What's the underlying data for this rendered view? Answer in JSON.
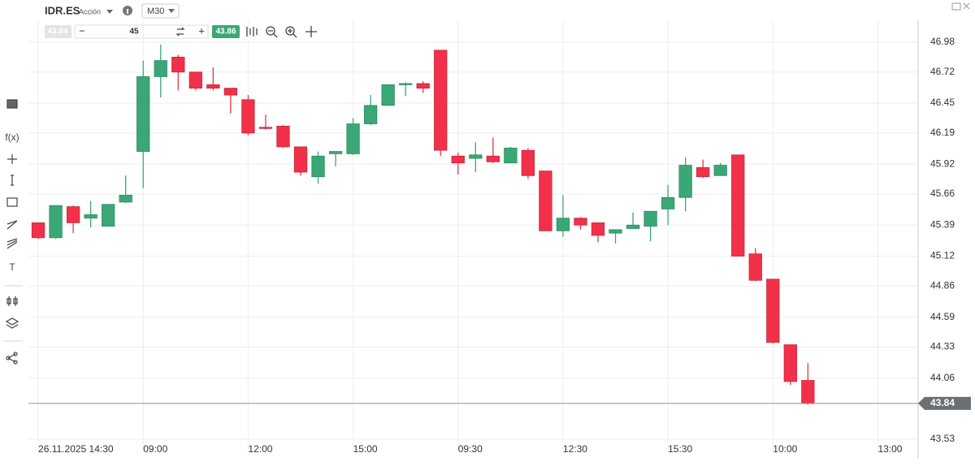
{
  "header": {
    "symbol": "IDR.ES",
    "asset_type": "Acción",
    "timeframe": "M30",
    "sell_price": "43.84",
    "quantity": "45",
    "buy_price": "43.86"
  },
  "toolbar": {
    "function_label": "f(x)",
    "text_tool": "T"
  },
  "chart_data": {
    "type": "candlestick",
    "open": [
      45.41,
      45.28,
      45.55,
      45.45,
      45.38,
      45.59,
      46.03,
      46.68,
      46.85,
      46.72,
      46.61,
      46.58,
      46.48,
      46.24,
      46.25,
      46.07,
      45.81,
      46.01,
      46.01,
      46.27,
      46.43,
      46.61,
      46.62,
      46.91,
      45.99,
      45.97,
      45.99,
      45.93,
      46.04,
      45.86,
      45.34,
      45.45,
      45.41,
      45.32,
      45.36,
      45.38,
      45.53,
      45.63,
      45.89,
      45.82,
      46.0,
      45.14,
      44.92,
      44.35,
      44.04
    ],
    "high": [
      45.41,
      45.56,
      45.56,
      45.6,
      45.57,
      45.82,
      46.82,
      46.96,
      46.87,
      46.72,
      46.76,
      46.58,
      46.52,
      46.35,
      46.26,
      46.07,
      46.03,
      46.03,
      46.32,
      46.52,
      46.61,
      46.63,
      46.64,
      46.91,
      46.02,
      46.11,
      46.15,
      46.07,
      46.06,
      45.86,
      45.65,
      45.46,
      45.41,
      45.35,
      45.5,
      45.51,
      45.74,
      45.98,
      45.96,
      45.93,
      46.0,
      45.19,
      44.92,
      44.35,
      44.19
    ],
    "low": [
      45.27,
      45.27,
      45.32,
      45.37,
      45.38,
      45.58,
      45.71,
      46.5,
      46.56,
      46.56,
      46.56,
      46.36,
      46.17,
      46.22,
      46.06,
      45.82,
      45.75,
      45.9,
      46.0,
      46.26,
      46.43,
      46.51,
      46.54,
      45.99,
      45.83,
      45.85,
      45.93,
      45.93,
      45.79,
      45.34,
      45.29,
      45.35,
      45.24,
      45.23,
      45.36,
      45.25,
      45.39,
      45.51,
      45.8,
      45.82,
      45.12,
      44.9,
      44.36,
      44.0,
      43.83
    ],
    "close": [
      45.28,
      45.56,
      45.41,
      45.48,
      45.57,
      45.65,
      46.68,
      46.82,
      46.72,
      46.58,
      46.58,
      46.52,
      46.19,
      46.23,
      46.07,
      45.85,
      45.99,
      46.03,
      46.27,
      46.43,
      46.61,
      46.62,
      46.58,
      46.04,
      45.93,
      46.0,
      45.94,
      46.06,
      45.82,
      45.34,
      45.45,
      45.39,
      45.3,
      45.35,
      45.39,
      45.51,
      45.63,
      45.91,
      45.81,
      45.91,
      45.12,
      44.91,
      44.37,
      44.03,
      43.84
    ],
    "up_color": "#3aa876",
    "down_color": "#f2304a",
    "last_price": 43.84,
    "xlim": [
      -0.56,
      50.3
    ],
    "xticks": [
      {
        "value": 0,
        "label": "26.11.2025 14:30"
      },
      {
        "value": 6,
        "label": "09:00"
      },
      {
        "value": 12,
        "label": "12:00"
      },
      {
        "value": 18,
        "label": "15:00"
      },
      {
        "value": 24,
        "label": "09:30"
      },
      {
        "value": 30,
        "label": "12:30"
      },
      {
        "value": 36,
        "label": "15:30"
      },
      {
        "value": 42,
        "label": "10:00"
      },
      {
        "value": 48,
        "label": "13:00"
      }
    ],
    "ylim": [
      43.43,
      47.17
    ],
    "yticks": [
      46.98,
      46.72,
      46.45,
      46.19,
      45.92,
      45.66,
      45.39,
      45.12,
      44.86,
      44.59,
      44.33,
      44.06,
      43.53
    ],
    "grid": true
  }
}
